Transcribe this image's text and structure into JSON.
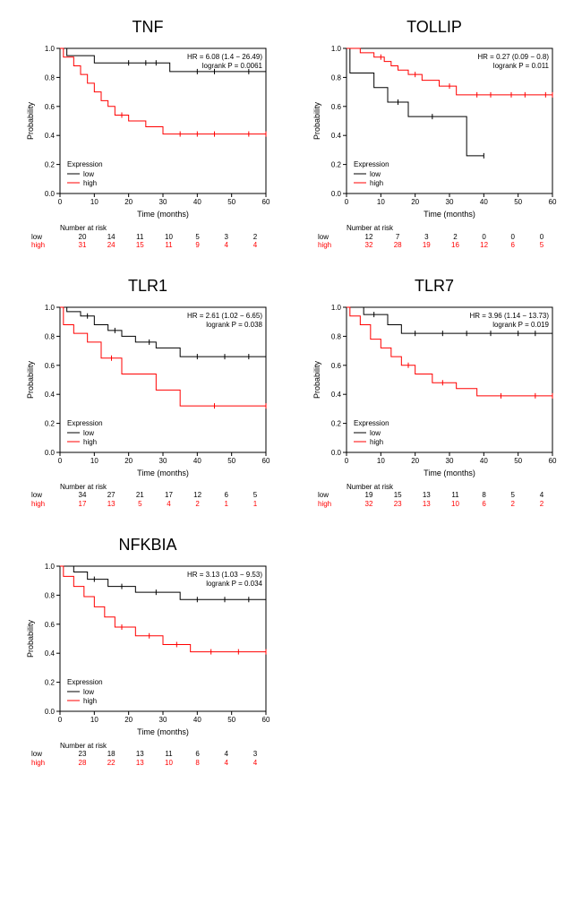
{
  "global": {
    "bg_color": "#ffffff",
    "axis_color": "#000000",
    "low_color": "#000000",
    "high_color": "#ff0000",
    "xlabel": "Time (months)",
    "ylabel": "Probability",
    "legend_title": "Expression",
    "legend_low": "low",
    "legend_high": "high",
    "xlim": [
      0,
      60
    ],
    "ylim": [
      0,
      1.0
    ],
    "xticks": [
      0,
      10,
      20,
      30,
      40,
      50,
      60
    ],
    "yticks": [
      0.0,
      0.2,
      0.4,
      0.6,
      0.8,
      1.0
    ],
    "line_width": 1,
    "title_fontsize": 18,
    "axis_fontsize": 9,
    "tick_fontsize": 8,
    "anno_fontsize": 8,
    "risk_fontsize": 8,
    "nar_label": "Number at risk",
    "low_label": "low",
    "high_label": "high"
  },
  "panels": [
    {
      "title": "TNF",
      "hr_text": "HR = 6.08 (1.4 − 26.49)",
      "p_text": "logrank P = 0.0061",
      "low_steps": [
        [
          0,
          1.0
        ],
        [
          2,
          1.0
        ],
        [
          2,
          0.95
        ],
        [
          10,
          0.95
        ],
        [
          10,
          0.9
        ],
        [
          15,
          0.9
        ],
        [
          32,
          0.9
        ],
        [
          32,
          0.84
        ],
        [
          60,
          0.84
        ]
      ],
      "low_cens": [
        [
          20,
          0.9
        ],
        [
          25,
          0.9
        ],
        [
          28,
          0.9
        ],
        [
          40,
          0.84
        ],
        [
          45,
          0.84
        ],
        [
          55,
          0.84
        ],
        [
          60,
          0.84
        ]
      ],
      "high_steps": [
        [
          0,
          1.0
        ],
        [
          1,
          1.0
        ],
        [
          1,
          0.94
        ],
        [
          4,
          0.94
        ],
        [
          4,
          0.88
        ],
        [
          6,
          0.88
        ],
        [
          6,
          0.82
        ],
        [
          8,
          0.82
        ],
        [
          8,
          0.76
        ],
        [
          10,
          0.76
        ],
        [
          10,
          0.7
        ],
        [
          12,
          0.7
        ],
        [
          12,
          0.64
        ],
        [
          14,
          0.64
        ],
        [
          14,
          0.6
        ],
        [
          16,
          0.6
        ],
        [
          16,
          0.54
        ],
        [
          20,
          0.54
        ],
        [
          20,
          0.5
        ],
        [
          25,
          0.5
        ],
        [
          25,
          0.46
        ],
        [
          30,
          0.46
        ],
        [
          30,
          0.41
        ],
        [
          60,
          0.41
        ]
      ],
      "high_cens": [
        [
          18,
          0.54
        ],
        [
          35,
          0.41
        ],
        [
          40,
          0.41
        ],
        [
          45,
          0.41
        ],
        [
          55,
          0.41
        ],
        [
          60,
          0.41
        ]
      ],
      "risk_low": [
        20,
        14,
        11,
        10,
        5,
        3,
        2
      ],
      "risk_high": [
        31,
        24,
        15,
        11,
        9,
        4,
        4
      ]
    },
    {
      "title": "TOLLIP",
      "hr_text": "HR = 0.27 (0.09 − 0.8)",
      "p_text": "logrank P = 0.011",
      "low_steps": [
        [
          0,
          1.0
        ],
        [
          1,
          1.0
        ],
        [
          1,
          0.83
        ],
        [
          8,
          0.83
        ],
        [
          8,
          0.73
        ],
        [
          12,
          0.73
        ],
        [
          12,
          0.63
        ],
        [
          18,
          0.63
        ],
        [
          18,
          0.53
        ],
        [
          35,
          0.53
        ],
        [
          35,
          0.26
        ],
        [
          40,
          0.26
        ]
      ],
      "low_cens": [
        [
          15,
          0.63
        ],
        [
          25,
          0.53
        ],
        [
          40,
          0.26
        ]
      ],
      "high_steps": [
        [
          0,
          1.0
        ],
        [
          4,
          1.0
        ],
        [
          4,
          0.97
        ],
        [
          8,
          0.97
        ],
        [
          8,
          0.94
        ],
        [
          11,
          0.94
        ],
        [
          11,
          0.91
        ],
        [
          13,
          0.91
        ],
        [
          13,
          0.88
        ],
        [
          15,
          0.88
        ],
        [
          15,
          0.85
        ],
        [
          18,
          0.85
        ],
        [
          18,
          0.82
        ],
        [
          22,
          0.82
        ],
        [
          22,
          0.78
        ],
        [
          27,
          0.78
        ],
        [
          27,
          0.74
        ],
        [
          32,
          0.74
        ],
        [
          32,
          0.68
        ],
        [
          60,
          0.68
        ]
      ],
      "high_cens": [
        [
          10,
          0.94
        ],
        [
          20,
          0.82
        ],
        [
          30,
          0.74
        ],
        [
          38,
          0.68
        ],
        [
          42,
          0.68
        ],
        [
          48,
          0.68
        ],
        [
          52,
          0.68
        ],
        [
          58,
          0.68
        ],
        [
          60,
          0.68
        ]
      ],
      "risk_low": [
        12,
        7,
        3,
        2,
        0,
        0,
        0
      ],
      "risk_high": [
        32,
        28,
        19,
        16,
        12,
        6,
        5
      ]
    },
    {
      "title": "TLR1",
      "hr_text": "HR = 2.61 (1.02 − 6.65)",
      "p_text": "logrank P = 0.038",
      "low_steps": [
        [
          0,
          1.0
        ],
        [
          2,
          1.0
        ],
        [
          2,
          0.97
        ],
        [
          6,
          0.97
        ],
        [
          6,
          0.94
        ],
        [
          10,
          0.94
        ],
        [
          10,
          0.88
        ],
        [
          14,
          0.88
        ],
        [
          14,
          0.84
        ],
        [
          18,
          0.84
        ],
        [
          18,
          0.8
        ],
        [
          22,
          0.8
        ],
        [
          22,
          0.76
        ],
        [
          28,
          0.76
        ],
        [
          28,
          0.72
        ],
        [
          35,
          0.72
        ],
        [
          35,
          0.66
        ],
        [
          60,
          0.66
        ]
      ],
      "low_cens": [
        [
          8,
          0.94
        ],
        [
          16,
          0.84
        ],
        [
          26,
          0.76
        ],
        [
          40,
          0.66
        ],
        [
          48,
          0.66
        ],
        [
          55,
          0.66
        ],
        [
          60,
          0.66
        ]
      ],
      "high_steps": [
        [
          0,
          1.0
        ],
        [
          1,
          1.0
        ],
        [
          1,
          0.88
        ],
        [
          4,
          0.88
        ],
        [
          4,
          0.82
        ],
        [
          8,
          0.82
        ],
        [
          8,
          0.76
        ],
        [
          12,
          0.76
        ],
        [
          12,
          0.65
        ],
        [
          18,
          0.65
        ],
        [
          18,
          0.54
        ],
        [
          28,
          0.54
        ],
        [
          28,
          0.43
        ],
        [
          35,
          0.43
        ],
        [
          35,
          0.32
        ],
        [
          60,
          0.32
        ]
      ],
      "high_cens": [
        [
          15,
          0.65
        ],
        [
          45,
          0.32
        ],
        [
          60,
          0.32
        ]
      ],
      "risk_low": [
        34,
        27,
        21,
        17,
        12,
        6,
        5
      ],
      "risk_high": [
        17,
        13,
        5,
        4,
        2,
        1,
        1
      ]
    },
    {
      "title": "TLR7",
      "hr_text": "HR = 3.96 (1.14 − 13.73)",
      "p_text": "logrank P = 0.019",
      "low_steps": [
        [
          0,
          1.0
        ],
        [
          5,
          1.0
        ],
        [
          5,
          0.95
        ],
        [
          12,
          0.95
        ],
        [
          12,
          0.88
        ],
        [
          16,
          0.88
        ],
        [
          16,
          0.82
        ],
        [
          60,
          0.82
        ]
      ],
      "low_cens": [
        [
          8,
          0.95
        ],
        [
          20,
          0.82
        ],
        [
          28,
          0.82
        ],
        [
          35,
          0.82
        ],
        [
          42,
          0.82
        ],
        [
          50,
          0.82
        ],
        [
          55,
          0.82
        ],
        [
          60,
          0.82
        ]
      ],
      "high_steps": [
        [
          0,
          1.0
        ],
        [
          1,
          1.0
        ],
        [
          1,
          0.94
        ],
        [
          4,
          0.94
        ],
        [
          4,
          0.88
        ],
        [
          7,
          0.88
        ],
        [
          7,
          0.78
        ],
        [
          10,
          0.78
        ],
        [
          10,
          0.72
        ],
        [
          13,
          0.72
        ],
        [
          13,
          0.66
        ],
        [
          16,
          0.66
        ],
        [
          16,
          0.6
        ],
        [
          20,
          0.6
        ],
        [
          20,
          0.54
        ],
        [
          25,
          0.54
        ],
        [
          25,
          0.48
        ],
        [
          32,
          0.48
        ],
        [
          32,
          0.44
        ],
        [
          38,
          0.44
        ],
        [
          38,
          0.39
        ],
        [
          60,
          0.39
        ]
      ],
      "high_cens": [
        [
          18,
          0.6
        ],
        [
          28,
          0.48
        ],
        [
          45,
          0.39
        ],
        [
          55,
          0.39
        ],
        [
          60,
          0.39
        ]
      ],
      "risk_low": [
        19,
        15,
        13,
        11,
        8,
        5,
        4
      ],
      "risk_high": [
        32,
        23,
        13,
        10,
        6,
        2,
        2
      ]
    },
    {
      "title": "NFKBIA",
      "hr_text": "HR = 3.13 (1.03 − 9.53)",
      "p_text": "logrank P = 0.034",
      "low_steps": [
        [
          0,
          1.0
        ],
        [
          4,
          1.0
        ],
        [
          4,
          0.96
        ],
        [
          8,
          0.96
        ],
        [
          8,
          0.91
        ],
        [
          14,
          0.91
        ],
        [
          14,
          0.86
        ],
        [
          22,
          0.86
        ],
        [
          22,
          0.82
        ],
        [
          35,
          0.82
        ],
        [
          35,
          0.77
        ],
        [
          60,
          0.77
        ]
      ],
      "low_cens": [
        [
          10,
          0.91
        ],
        [
          18,
          0.86
        ],
        [
          28,
          0.82
        ],
        [
          40,
          0.77
        ],
        [
          48,
          0.77
        ],
        [
          55,
          0.77
        ],
        [
          60,
          0.77
        ]
      ],
      "high_steps": [
        [
          0,
          1.0
        ],
        [
          1,
          1.0
        ],
        [
          1,
          0.93
        ],
        [
          4,
          0.93
        ],
        [
          4,
          0.86
        ],
        [
          7,
          0.86
        ],
        [
          7,
          0.79
        ],
        [
          10,
          0.79
        ],
        [
          10,
          0.72
        ],
        [
          13,
          0.72
        ],
        [
          13,
          0.65
        ],
        [
          16,
          0.65
        ],
        [
          16,
          0.58
        ],
        [
          22,
          0.58
        ],
        [
          22,
          0.52
        ],
        [
          30,
          0.52
        ],
        [
          30,
          0.46
        ],
        [
          38,
          0.46
        ],
        [
          38,
          0.41
        ],
        [
          60,
          0.41
        ]
      ],
      "high_cens": [
        [
          18,
          0.58
        ],
        [
          26,
          0.52
        ],
        [
          34,
          0.46
        ],
        [
          44,
          0.41
        ],
        [
          52,
          0.41
        ],
        [
          60,
          0.41
        ]
      ],
      "risk_low": [
        23,
        18,
        13,
        11,
        6,
        4,
        3
      ],
      "risk_high": [
        28,
        22,
        13,
        10,
        8,
        4,
        4
      ]
    }
  ]
}
